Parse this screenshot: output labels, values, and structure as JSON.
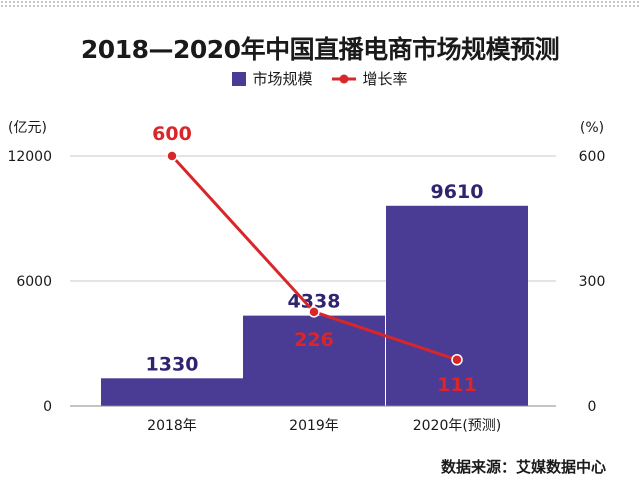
{
  "chart_data": {
    "type": "bar",
    "title": "2018—2020年中国直播电商市场规模预测",
    "categories": [
      "2018年",
      "2019年",
      "2020年(预测)"
    ],
    "series": [
      {
        "name": "市场规模",
        "type": "bar",
        "axis": "left",
        "values": [
          1330,
          4338,
          9610
        ],
        "labels": [
          "1330",
          "4338",
          "9610"
        ],
        "color": "#4a3b94"
      },
      {
        "name": "增长率",
        "type": "line",
        "axis": "right",
        "values": [
          600,
          226,
          111
        ],
        "labels": [
          "600",
          "226",
          "111"
        ],
        "color": "#d9262a"
      }
    ],
    "y_left": {
      "label": "(亿元)",
      "range": [
        0,
        12000
      ],
      "ticks": [
        "0",
        "6000",
        "12000"
      ]
    },
    "y_right": {
      "label": "(%)",
      "range": [
        0,
        600
      ],
      "ticks": [
        "0",
        "300",
        "600"
      ]
    },
    "grid": true,
    "legend_position": "top-center"
  },
  "legend": {
    "bar_label": "市场规模",
    "line_label": "增长率"
  },
  "source": "数据来源：艾媒数据中心",
  "colors": {
    "bar": "#4a3b94",
    "line": "#d9262a",
    "grid": "#c8c8c8"
  }
}
